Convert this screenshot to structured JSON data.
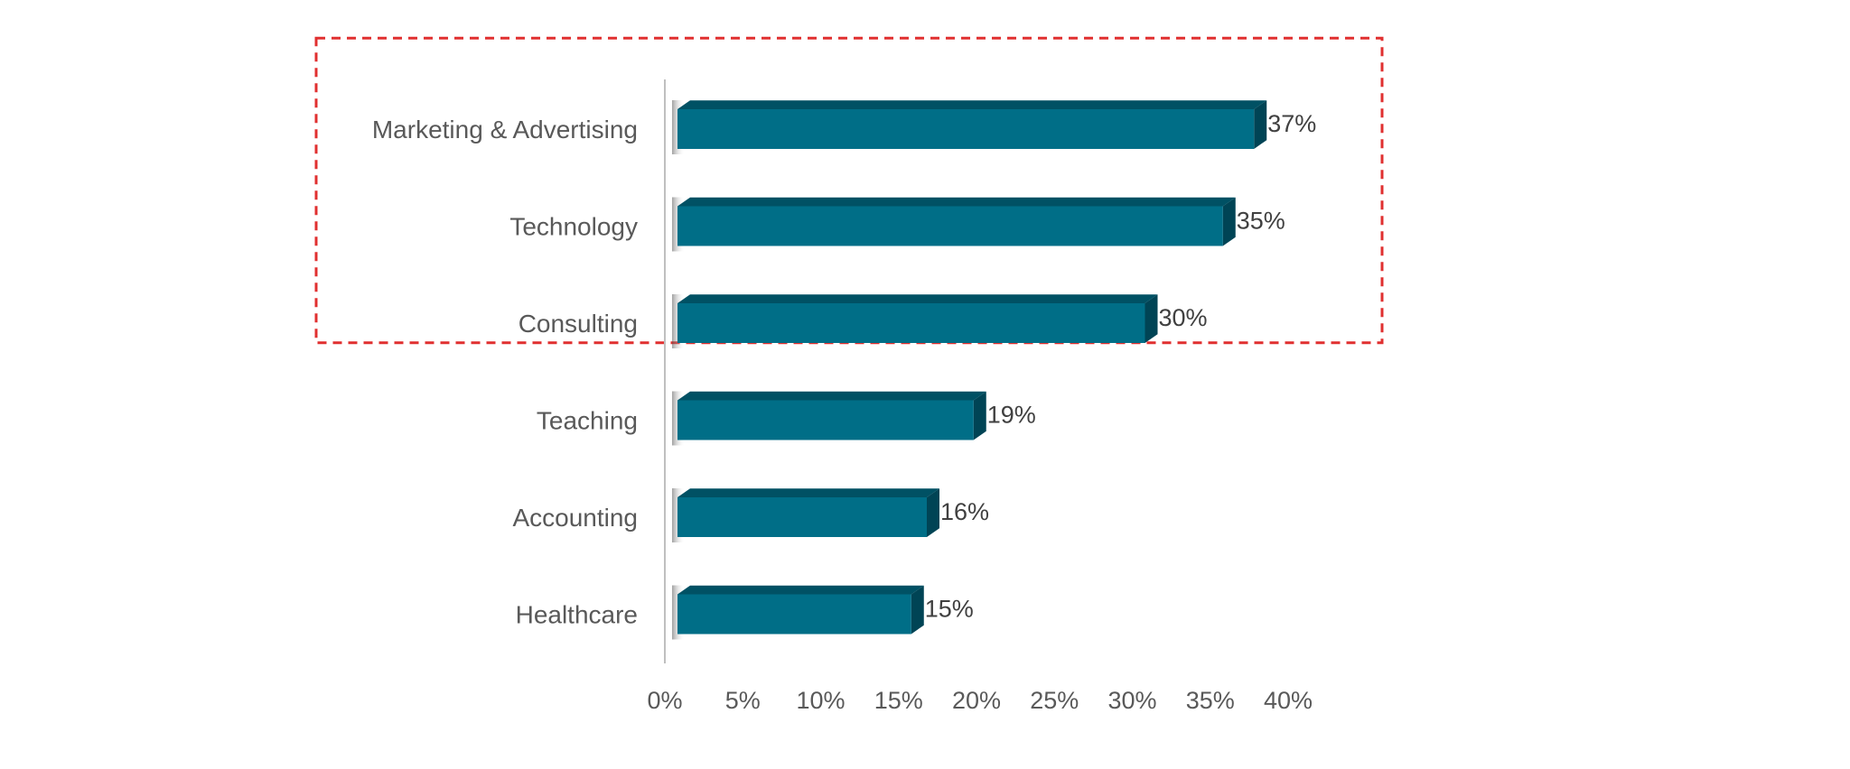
{
  "chart_data": {
    "type": "bar",
    "orientation": "horizontal",
    "style": "3d",
    "categories": [
      "Marketing & Advertising",
      "Technology",
      "Consulting",
      "Teaching",
      "Accounting",
      "Healthcare"
    ],
    "values": [
      37,
      35,
      30,
      19,
      16,
      15
    ],
    "data_labels": [
      "37%",
      "35%",
      "30%",
      "19%",
      "16%",
      "15%"
    ],
    "x_ticks": [
      "0%",
      "5%",
      "10%",
      "15%",
      "20%",
      "25%",
      "30%",
      "35%",
      "40%"
    ],
    "xlim": [
      0,
      40
    ],
    "title": "",
    "xlabel": "",
    "ylabel": "",
    "grid": false,
    "legend": "none",
    "highlight": {
      "categories": [
        "Marketing & Advertising",
        "Technology",
        "Consulting"
      ],
      "style": "dashed-box"
    },
    "colors": {
      "bar_front": "#006E87",
      "bar_top": "#005164",
      "bar_side": "#004455",
      "highlight_border": "#E03030",
      "label_text": "#595959",
      "value_text": "#404040",
      "axis_line": "#BFBFBF"
    }
  }
}
